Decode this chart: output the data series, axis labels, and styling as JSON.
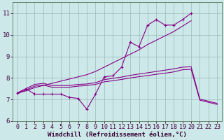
{
  "x_full": [
    0,
    1,
    2,
    3,
    4,
    5,
    6,
    7,
    8,
    9,
    10,
    11,
    12,
    13,
    14,
    15,
    16,
    17,
    18,
    19,
    20,
    21,
    22,
    23
  ],
  "x_short": [
    0,
    1,
    2,
    3,
    4,
    5,
    6,
    7,
    8,
    9,
    10,
    11,
    12,
    13,
    14,
    15,
    16,
    17,
    18,
    19,
    20
  ],
  "line_jagged": [
    7.3,
    7.5,
    7.25,
    7.25,
    7.25,
    7.25,
    7.1,
    7.05,
    6.55,
    7.25,
    8.05,
    8.1,
    8.5,
    9.65,
    9.45,
    10.45,
    10.7,
    10.45,
    10.45,
    10.7,
    11.0
  ],
  "line_smooth": [
    7.3,
    7.4,
    7.55,
    7.65,
    7.75,
    7.85,
    7.95,
    8.05,
    8.15,
    8.3,
    8.5,
    8.7,
    8.9,
    9.1,
    9.3,
    9.55,
    9.75,
    9.95,
    10.15,
    10.4,
    10.65
  ],
  "line_upper_flat": [
    7.3,
    7.5,
    7.7,
    7.75,
    7.65,
    7.65,
    7.65,
    7.7,
    7.72,
    7.78,
    7.92,
    7.98,
    8.04,
    8.12,
    8.18,
    8.24,
    8.3,
    8.36,
    8.42,
    8.5,
    8.52,
    7.02,
    6.92,
    6.82
  ],
  "line_lower_flat": [
    7.27,
    7.44,
    7.62,
    7.67,
    7.57,
    7.57,
    7.57,
    7.62,
    7.65,
    7.7,
    7.82,
    7.87,
    7.93,
    8.0,
    8.06,
    8.11,
    8.17,
    8.22,
    8.28,
    8.38,
    8.4,
    6.97,
    6.87,
    6.77
  ],
  "bg_color": "#cce8e8",
  "line_color": "#880088",
  "grid_color": "#99bbbb",
  "ylim": [
    6.0,
    11.5
  ],
  "xlim": [
    -0.5,
    23.5
  ],
  "yticks": [
    6,
    7,
    8,
    9,
    10,
    11
  ],
  "xticks": [
    0,
    1,
    2,
    3,
    4,
    5,
    6,
    7,
    8,
    9,
    10,
    11,
    12,
    13,
    14,
    15,
    16,
    17,
    18,
    19,
    20,
    21,
    22,
    23
  ],
  "xlabel": "Windchill (Refroidissement éolien,°C)",
  "xlabel_fontsize": 6.5,
  "tick_fontsize": 6.0,
  "marker": "+"
}
